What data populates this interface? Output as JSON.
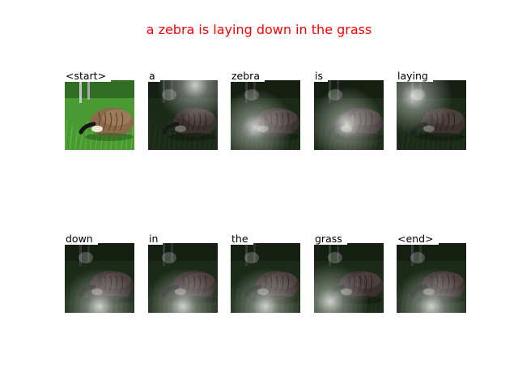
{
  "caption": "a zebra is laying down in the grass",
  "frames": [
    {
      "word": "<start>",
      "mode": "original"
    },
    {
      "word": "a",
      "mode": "attention",
      "focus": "top-center"
    },
    {
      "word": "zebra",
      "mode": "attention",
      "focus": "lower-left"
    },
    {
      "word": "is",
      "mode": "attention",
      "focus": "center"
    },
    {
      "word": "laying",
      "mode": "attention",
      "focus": "top-left"
    },
    {
      "word": "down",
      "mode": "attention",
      "focus": "bottom"
    },
    {
      "word": "in",
      "mode": "attention",
      "focus": "bottom"
    },
    {
      "word": "the",
      "mode": "attention",
      "focus": "bottom"
    },
    {
      "word": "grass",
      "mode": "attention",
      "focus": "bottom-left"
    },
    {
      "word": "<end>",
      "mode": "attention",
      "focus": "bottom"
    }
  ],
  "colors": {
    "caption": "#ff0000",
    "grass": "#3f8f2a",
    "goose_body": "#8a6a4a"
  }
}
